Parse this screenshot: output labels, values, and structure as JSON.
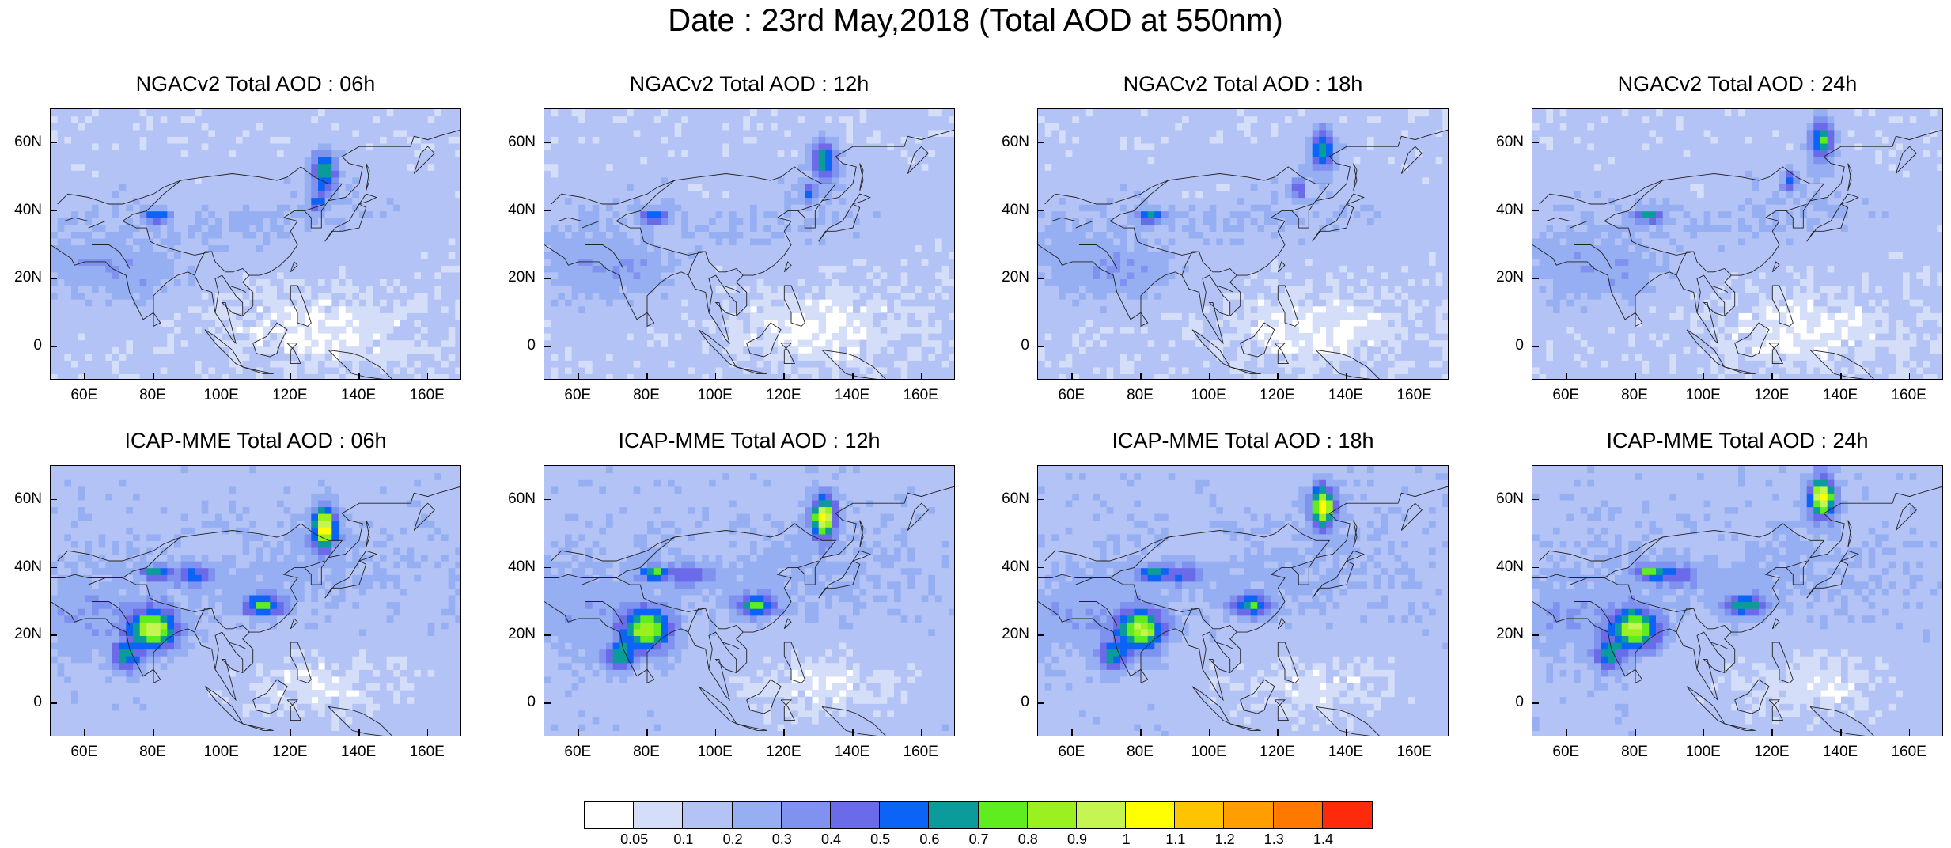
{
  "title": "Date : 23rd May,2018 (Total AOD at 550nm)",
  "panels": [
    {
      "title": "NGACv2 Total AOD : 06h",
      "model": "NGACv2",
      "hour": "06h"
    },
    {
      "title": "NGACv2 Total AOD : 12h",
      "model": "NGACv2",
      "hour": "12h"
    },
    {
      "title": "NGACv2 Total AOD : 18h",
      "model": "NGACv2",
      "hour": "18h"
    },
    {
      "title": "NGACv2 Total AOD : 24h",
      "model": "NGACv2",
      "hour": "24h"
    },
    {
      "title": "ICAP-MME Total AOD : 06h",
      "model": "ICAP-MME",
      "hour": "06h"
    },
    {
      "title": "ICAP-MME Total AOD : 12h",
      "model": "ICAP-MME",
      "hour": "12h"
    },
    {
      "title": "ICAP-MME Total AOD : 18h",
      "model": "ICAP-MME",
      "hour": "18h"
    },
    {
      "title": "ICAP-MME Total AOD : 24h",
      "model": "ICAP-MME",
      "hour": "24h"
    }
  ],
  "axes": {
    "lat_ticks": [
      "60N",
      "40N",
      "20N",
      "0"
    ],
    "lon_ticks": [
      "60E",
      "80E",
      "100E",
      "120E",
      "140E",
      "160E"
    ],
    "lat_range": [
      -10,
      70
    ],
    "lon_range": [
      50,
      170
    ]
  },
  "colorbar": {
    "labels": [
      "0.05",
      "0.1",
      "0.2",
      "0.3",
      "0.4",
      "0.5",
      "0.6",
      "0.7",
      "0.8",
      "0.9",
      "1",
      "1.1",
      "1.2",
      "1.3",
      "1.4"
    ],
    "colors": [
      "#ffffff",
      "#d5def8",
      "#b4c3f5",
      "#96aff2",
      "#7f92ef",
      "#6b6bea",
      "#0b64f5",
      "#0c9b9b",
      "#5fed1f",
      "#9bf01f",
      "#c4f553",
      "#ffff00",
      "#ffc400",
      "#ff9e00",
      "#ff7800",
      "#ff2a0b"
    ]
  }
}
